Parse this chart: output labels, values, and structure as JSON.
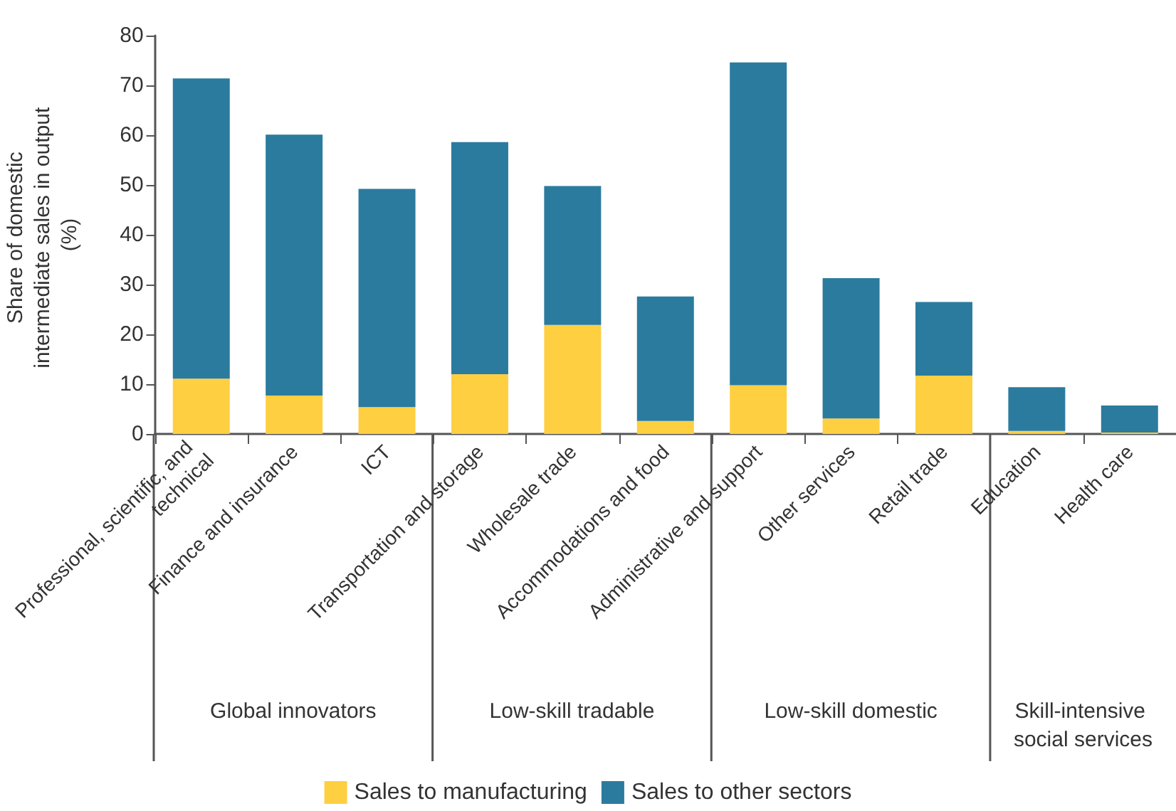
{
  "chart_data": {
    "type": "bar",
    "stacked": true,
    "ylabel": "Share of domestic intermediate sales in output (%)",
    "categories": [
      "Professional, scientific, and technical",
      "Finance and insurance",
      "ICT",
      "Transportation and storage",
      "Wholesale trade",
      "Accommodations and food",
      "Administrative and support",
      "Other services",
      "Retail trade",
      "Education",
      "Health care"
    ],
    "series": [
      {
        "name": "Sales to manufacturing",
        "color": "#ffcf42",
        "values": [
          11.1,
          7.7,
          5.4,
          12.0,
          21.9,
          2.6,
          9.8,
          3.1,
          11.7,
          0.6,
          0.3
        ]
      },
      {
        "name": "Sales to other sectors",
        "color": "#2b7b9f",
        "values": [
          60.3,
          52.4,
          43.8,
          46.6,
          27.9,
          25.0,
          64.8,
          28.2,
          14.8,
          8.8,
          5.4
        ]
      }
    ],
    "ylim": [
      0,
      80
    ],
    "yticks": [
      0,
      10,
      20,
      30,
      40,
      50,
      60,
      70,
      80
    ],
    "grid": false,
    "legend": "bottom",
    "annotations": [
      "Global innovators",
      "Low-skill tradable",
      "Low-skill domestic",
      "Skill-intensive social services"
    ]
  }
}
